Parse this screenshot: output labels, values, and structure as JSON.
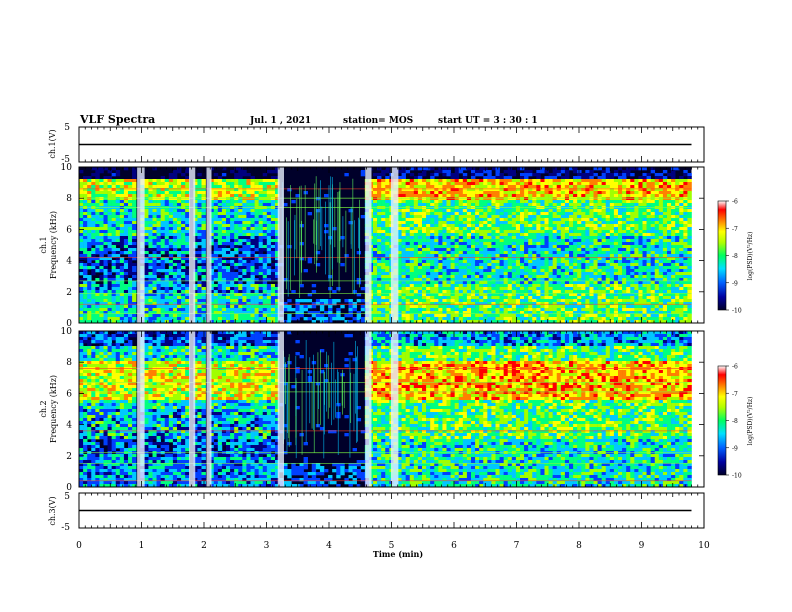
{
  "header": {
    "title": "VLF Spectra",
    "date": "Jul. 1 , 2021",
    "station": "station= MOS",
    "start_ut": "start UT = 3 : 30 : 1"
  },
  "chart_data": [
    {
      "type": "line",
      "panel": "ch1-waveform",
      "ylabel": "ch.1(V)",
      "yticks": [
        "5",
        "-5"
      ],
      "ylim": [
        -5,
        5
      ],
      "xlim": [
        0,
        10
      ],
      "series": [
        {
          "x": [
            0,
            9.8
          ],
          "y": [
            0,
            0
          ]
        }
      ]
    },
    {
      "type": "heatmap",
      "panel": "ch1-spectrogram",
      "ylabel_line1": "ch.1",
      "ylabel_line2": "Frequency (kHz)",
      "yticks": [
        "0",
        "2",
        "4",
        "6",
        "8",
        "10"
      ],
      "ylim": [
        0,
        10
      ],
      "xlim": [
        0,
        10
      ],
      "data_end_min": 9.8,
      "colorbar": {
        "label": "log(PSD)(V²/Hz)",
        "ticks": [
          "-6",
          "-7",
          "-8",
          "-9",
          "-10"
        ],
        "range": [
          -10,
          -6
        ]
      }
    },
    {
      "type": "heatmap",
      "panel": "ch2-spectrogram",
      "ylabel_line1": "ch.2",
      "ylabel_line2": "Frequency (kHz)",
      "yticks": [
        "0",
        "2",
        "4",
        "6",
        "8",
        "10"
      ],
      "ylim": [
        0,
        10
      ],
      "xlim": [
        0,
        10
      ],
      "data_end_min": 9.8,
      "colorbar": {
        "label": "log(PSD)(V²/Hz)",
        "ticks": [
          "-6",
          "-7",
          "-8",
          "-9",
          "-10"
        ],
        "range": [
          -10,
          -6
        ]
      }
    },
    {
      "type": "line",
      "panel": "ch3-waveform",
      "ylabel": "ch.3(V)",
      "yticks": [
        "5",
        "-5"
      ],
      "ylim": [
        -5,
        5
      ],
      "xlim": [
        0,
        10
      ],
      "series": [
        {
          "x": [
            0,
            9.8
          ],
          "y": [
            0,
            0
          ]
        }
      ]
    }
  ],
  "xaxis": {
    "label": "Time (min)",
    "ticks": [
      "0",
      "1",
      "2",
      "3",
      "4",
      "5",
      "6",
      "7",
      "8",
      "9",
      "10"
    ]
  },
  "colors": {
    "colormap": [
      "#00002a",
      "#000080",
      "#0040ff",
      "#00c8ff",
      "#00ff80",
      "#a0ff00",
      "#ffff00",
      "#ff8000",
      "#ff0000",
      "#ffffff"
    ]
  }
}
